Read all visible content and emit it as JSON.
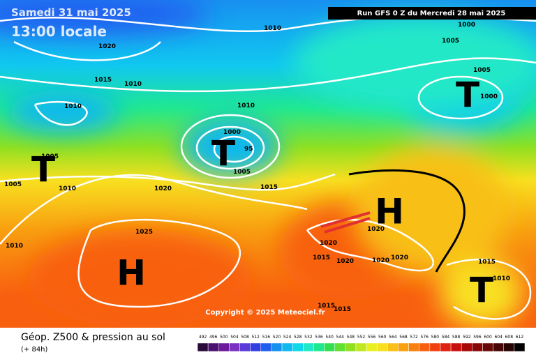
{
  "header": {
    "date": "Samedi 31 mai 2025",
    "time": "13:00 locale",
    "run": "Run GFS 0 Z du Mercredi 28 mai 2025"
  },
  "isobar_labels": [
    "1010",
    "1000",
    "1005",
    "1020",
    "1005",
    "1015",
    "1010",
    "1000",
    "1010",
    "1010",
    "1000",
    "95",
    "1005",
    "1005",
    "1010",
    "1005",
    "1020",
    "1015",
    "1025",
    "1020",
    "1010",
    "1020",
    "1015",
    "1020",
    "1020",
    "1020",
    "1015",
    "1010",
    "1015",
    "1015"
  ],
  "centers": [
    "T",
    "T",
    "T",
    "T",
    "H",
    "H"
  ],
  "copyright": "Copyright © 2025 Meteociel.fr",
  "footer": {
    "title": "Géop. Z500 & pression au sol",
    "lead": "(+ 84h)"
  },
  "scale": {
    "labels": [
      492,
      496,
      500,
      504,
      508,
      512,
      516,
      520,
      524,
      528,
      532,
      536,
      540,
      544,
      548,
      552,
      556,
      560,
      564,
      568,
      572,
      576,
      580,
      584,
      588,
      592,
      596,
      600,
      604,
      608,
      612
    ],
    "colors": [
      "#2a0a3a",
      "#4a1070",
      "#6a1a9a",
      "#7a30c0",
      "#5a3ad8",
      "#3040e0",
      "#2060f0",
      "#1890f0",
      "#10b8f0",
      "#10d8e8",
      "#20e8c8",
      "#20e890",
      "#30e050",
      "#60e030",
      "#90e020",
      "#c0e820",
      "#e8f020",
      "#f8e020",
      "#f8c018",
      "#f8a010",
      "#f88010",
      "#f86010",
      "#f04010",
      "#e02010",
      "#c81010",
      "#a80808",
      "#880808",
      "#680808",
      "#480505",
      "#280303",
      "#000000"
    ]
  }
}
